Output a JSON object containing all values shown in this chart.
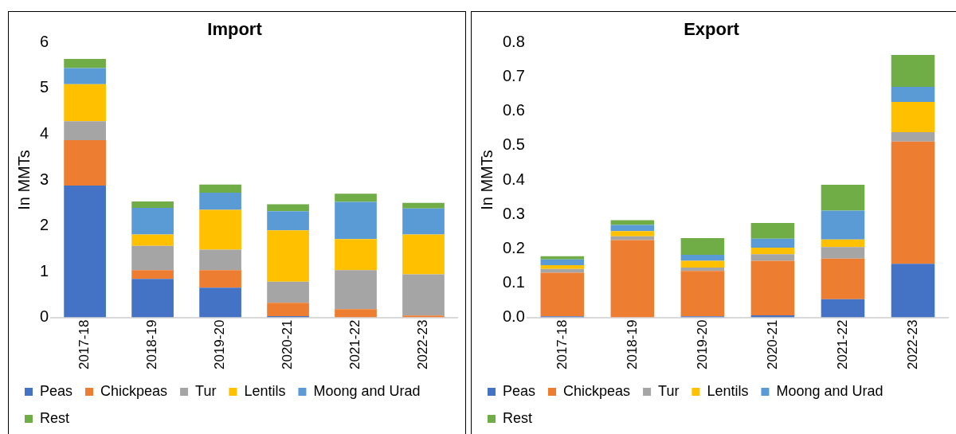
{
  "chart_data": [
    {
      "type": "bar",
      "stacked": true,
      "title": "Import",
      "ylabel": "In MMTs",
      "categories": [
        "2017-18",
        "2018-19",
        "2019-20",
        "2020-21",
        "2021-22",
        "2022-23"
      ],
      "ylim": [
        0,
        6
      ],
      "yticks": [
        0,
        1,
        2,
        3,
        4,
        5,
        6
      ],
      "grid": false,
      "legend": "bottom",
      "series": [
        {
          "name": "Peas",
          "color": "#4472c4",
          "values": [
            2.88,
            0.84,
            0.65,
            0.03,
            0,
            0
          ]
        },
        {
          "name": "Chickpeas",
          "color": "#ed7d31",
          "values": [
            0.99,
            0.19,
            0.38,
            0.29,
            0.18,
            0.04
          ]
        },
        {
          "name": "Tur",
          "color": "#a5a5a5",
          "values": [
            0.41,
            0.53,
            0.45,
            0.46,
            0.85,
            0.9
          ]
        },
        {
          "name": "Lentils",
          "color": "#ffc000",
          "values": [
            0.81,
            0.25,
            0.87,
            1.12,
            0.68,
            0.87
          ]
        },
        {
          "name": "Moong and Urad",
          "color": "#5b9bd5",
          "values": [
            0.35,
            0.58,
            0.37,
            0.42,
            0.81,
            0.57
          ]
        },
        {
          "name": "Rest",
          "color": "#70ad47",
          "values": [
            0.2,
            0.14,
            0.18,
            0.15,
            0.18,
            0.12
          ]
        }
      ]
    },
    {
      "type": "bar",
      "stacked": true,
      "title": "Export",
      "ylabel": "In MMTs",
      "categories": [
        "2017-18",
        "2018-19",
        "2019-20",
        "2020-21",
        "2021-22",
        "2022-23"
      ],
      "ylim": [
        0,
        0.8
      ],
      "yticks": [
        {
          "value": 0,
          "label": "0.0"
        },
        0.1,
        0.2,
        0.3,
        0.4,
        0.5,
        0.6,
        0.7,
        0.8
      ],
      "grid": false,
      "legend": "bottom",
      "series": [
        {
          "name": "Peas",
          "color": "#4472c4",
          "values": [
            0.003,
            null,
            0.003,
            0.006,
            0.053,
            0.156
          ]
        },
        {
          "name": "Chickpeas",
          "color": "#ed7d31",
          "values": [
            0.127,
            0.225,
            0.132,
            0.159,
            0.118,
            0.356
          ]
        },
        {
          "name": "Tur",
          "color": "#a5a5a5",
          "values": [
            0.011,
            0.011,
            0.01,
            0.019,
            0.034,
            0.027
          ]
        },
        {
          "name": "Lentils",
          "color": "#ffc000",
          "values": [
            0.011,
            0.015,
            0.02,
            0.019,
            0.022,
            0.088
          ]
        },
        {
          "name": "Moong and Urad",
          "color": "#5b9bd5",
          "values": [
            0.017,
            0.018,
            0.017,
            0.026,
            0.084,
            0.044
          ]
        },
        {
          "name": "Rest",
          "color": "#70ad47",
          "values": [
            0.009,
            0.014,
            0.049,
            0.046,
            0.075,
            0.093
          ]
        }
      ]
    }
  ]
}
